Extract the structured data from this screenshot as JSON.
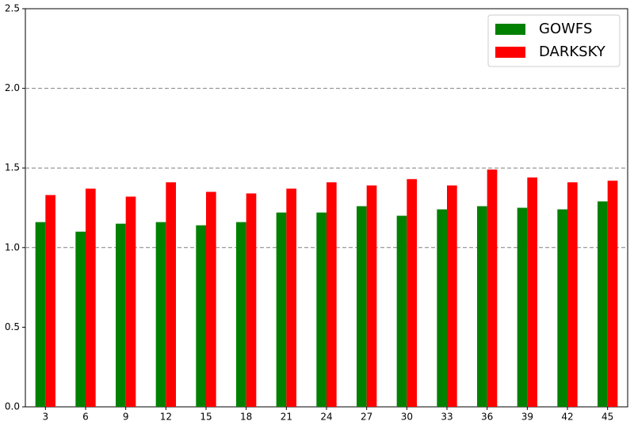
{
  "chart_data": {
    "type": "bar",
    "categories": [
      "3",
      "6",
      "9",
      "12",
      "15",
      "18",
      "21",
      "24",
      "27",
      "30",
      "33",
      "36",
      "39",
      "42",
      "45"
    ],
    "series": [
      {
        "name": "GOWFS",
        "color": "#008000",
        "values": [
          1.16,
          1.1,
          1.15,
          1.16,
          1.14,
          1.16,
          1.22,
          1.22,
          1.26,
          1.2,
          1.24,
          1.26,
          1.25,
          1.24,
          1.29
        ]
      },
      {
        "name": "DARKSKY",
        "color": "#ff0000",
        "values": [
          1.33,
          1.37,
          1.32,
          1.41,
          1.35,
          1.34,
          1.37,
          1.41,
          1.39,
          1.43,
          1.39,
          1.49,
          1.44,
          1.41,
          1.42
        ]
      }
    ],
    "ylim": [
      0,
      2.5
    ],
    "yticks": [
      {
        "value": 0,
        "label": "0.0"
      },
      0.5,
      {
        "value": 1,
        "label": "1.0"
      },
      1.5,
      {
        "value": 2,
        "label": "2.0"
      },
      2.5
    ],
    "hlines": [
      1,
      1.5,
      2
    ],
    "legend": "upper right"
  }
}
